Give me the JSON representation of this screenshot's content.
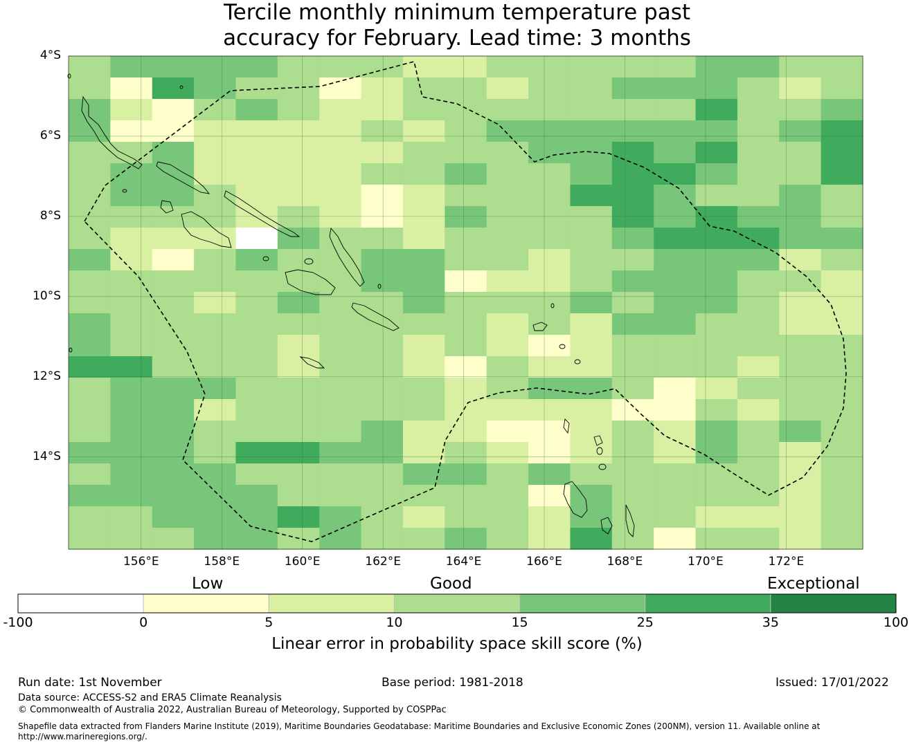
{
  "title": {
    "line1": "Tercile monthly minimum temperature past",
    "line2": "accuracy for February. Lead time: 3 months"
  },
  "map": {
    "lat_labels": [
      "4°S",
      "6°S",
      "8°S",
      "10°S",
      "12°S",
      "14°S"
    ],
    "lon_labels": [
      "156°E",
      "158°E",
      "160°E",
      "162°E",
      "164°E",
      "166°E",
      "168°E",
      "170°E",
      "172°E"
    ],
    "lon_range": [
      154.2,
      173.9
    ],
    "lat_range": [
      -4.0,
      -16.3
    ],
    "grid": true,
    "cell_size_deg": 0.83,
    "skill_grid": [
      "3444433322333334433",
      "3154331233233444323",
      "4213432233333335334",
      "4112222323444444345",
      "3342222233344545335",
      "3442222334334554335",
      "3443222123335543343",
      "3333232124333545443",
      "3222043323333455544",
      "4213433443323344423",
      "3333333441223444332",
      "3332343343334344322",
      "4333333333232443322",
      "4333323323212333333",
      "5533323321322333233",
      "3444333332344312333",
      "3442333332222113233",
      "3443333422112324343",
      "4443554423212324323",
      "3444333344343333323",
      "4444433333314333323",
      "3344454323324332223",
      "3334434334325313323"
    ],
    "legend_lookup": {
      "0": "#ffffff",
      "1": "#ffffcc",
      "2": "#d9f0a3",
      "3": "#addd8e",
      "4": "#78c679",
      "5": "#41ab5d",
      "6": "#238443"
    }
  },
  "colorbar": {
    "category_labels": [
      "Low",
      "Good",
      "Exceptional"
    ],
    "ticks": [
      "-100",
      "0",
      "5",
      "10",
      "15",
      "25",
      "35",
      "100"
    ],
    "colors": [
      "#ffffff",
      "#ffffcc",
      "#d9f0a3",
      "#addd8e",
      "#78c679",
      "#41ab5d",
      "#238443"
    ],
    "title": "Linear error in probability space skill score (%)"
  },
  "footer": {
    "run_date": "Run date: 1st November",
    "base_period": "Base period: 1981-2018",
    "issued": "Issued: 17/01/2022",
    "data_source": "Data source: ACCESS-S2 and ERA5 Climate Reanalysis",
    "copyright": "© Commonwealth of Australia 2022, Australian Bureau of Meteorology, Supported by COSPPac",
    "shapefile_line1": "Shapefile data extracted from Flanders Marine Institute (2019), Maritime Boundaries Geodatabase: Maritime Boundaries and Exclusive Economic Zones (200NM), version 11. Available online at",
    "shapefile_line2": "http://www.marineregions.org/."
  }
}
